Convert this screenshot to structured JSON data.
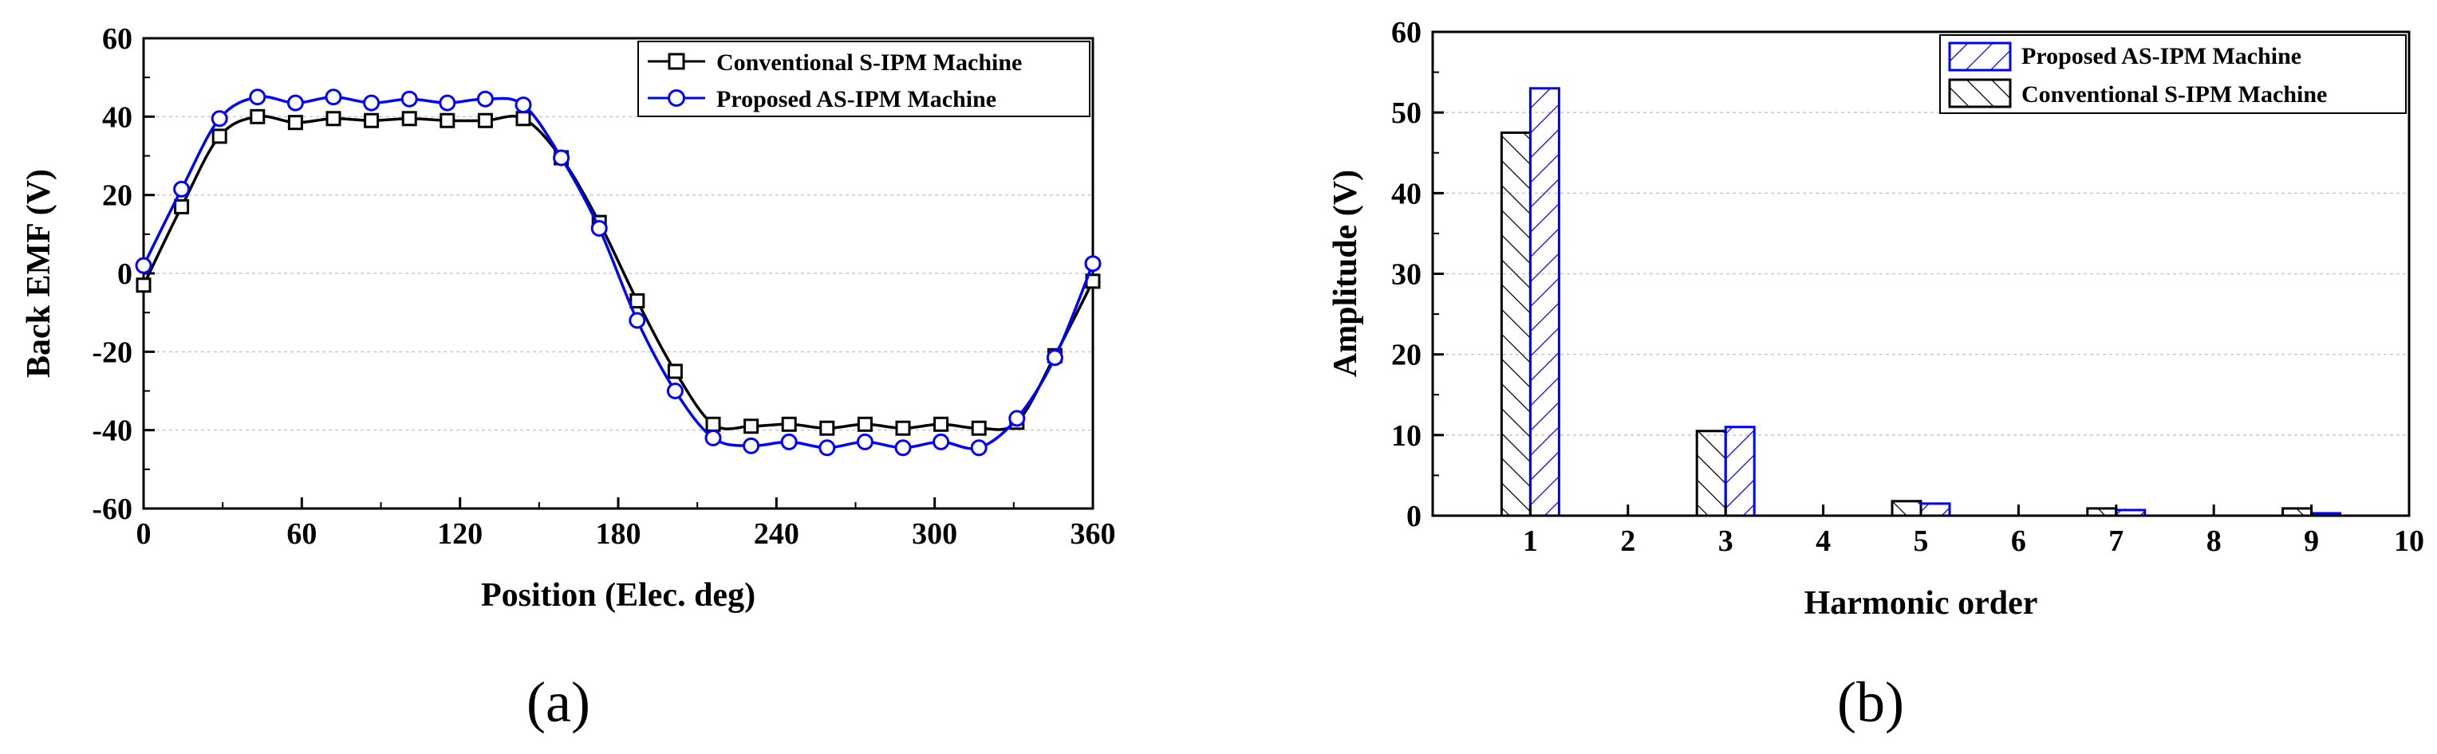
{
  "chart_data": [
    {
      "type": "line",
      "panel_label": "(a)",
      "xlabel": "Position (Elec. deg)",
      "ylabel": "Back EMF (V)",
      "xlim": [
        0,
        360
      ],
      "ylim": [
        -60,
        60
      ],
      "xticks": [
        "0",
        "60",
        "120",
        "180",
        "240",
        "300",
        "360"
      ],
      "yticks": [
        "-60",
        "-40",
        "-20",
        "0",
        "20",
        "40",
        "60"
      ],
      "grid": true,
      "legend_position": "top-right",
      "x": [
        0,
        14.4,
        28.8,
        43.2,
        57.6,
        72,
        86.4,
        100.8,
        115.2,
        129.6,
        144,
        158.4,
        172.8,
        187.2,
        201.6,
        216,
        230.4,
        244.8,
        259.2,
        273.6,
        288,
        302.4,
        316.8,
        331.2,
        345.6,
        360
      ],
      "series": [
        {
          "name": "Conventional S-IPM Machine",
          "color": "#000000",
          "marker": "square",
          "values": [
            -3,
            17,
            35,
            40,
            38.5,
            39.5,
            39,
            39.5,
            39,
            39,
            39.5,
            29.5,
            13,
            -7,
            -25,
            -38.5,
            -39,
            -38.5,
            -39.5,
            -38.5,
            -39.5,
            -38.5,
            -39.5,
            -38,
            -21,
            -2
          ]
        },
        {
          "name": "Proposed AS-IPM Machine",
          "color": "#0000ff",
          "marker": "circle",
          "values": [
            2,
            21.5,
            39.5,
            45,
            43.5,
            45,
            43.5,
            44.5,
            43.5,
            44.5,
            43,
            29.5,
            11.5,
            -12,
            -30,
            -42,
            -44,
            -43,
            -44.5,
            -43,
            -44.5,
            -43,
            -44.5,
            -37,
            -21.5,
            2.5
          ]
        }
      ]
    },
    {
      "type": "bar",
      "panel_label": "(b)",
      "xlabel": "Harmonic order",
      "ylabel": "Amplitude (V)",
      "xlim": [
        0,
        10
      ],
      "ylim": [
        0,
        60
      ],
      "xticks": [
        "1",
        "2",
        "3",
        "4",
        "5",
        "6",
        "7",
        "8",
        "9",
        "10"
      ],
      "yticks": [
        "0",
        "10",
        "20",
        "30",
        "40",
        "50",
        "60"
      ],
      "grid": true,
      "legend_position": "top-right",
      "categories": [
        1,
        3,
        5,
        7,
        9
      ],
      "series": [
        {
          "name": "Proposed AS-IPM Machine",
          "color": "#0000ff",
          "pattern": "backslash-hatch",
          "values": [
            53,
            11,
            1.5,
            0.7,
            0.3
          ]
        },
        {
          "name": "Conventional S-IPM Machine",
          "color": "#000000",
          "pattern": "slash-hatch",
          "values": [
            47.5,
            10.5,
            1.8,
            0.9,
            0.9
          ]
        }
      ]
    }
  ]
}
